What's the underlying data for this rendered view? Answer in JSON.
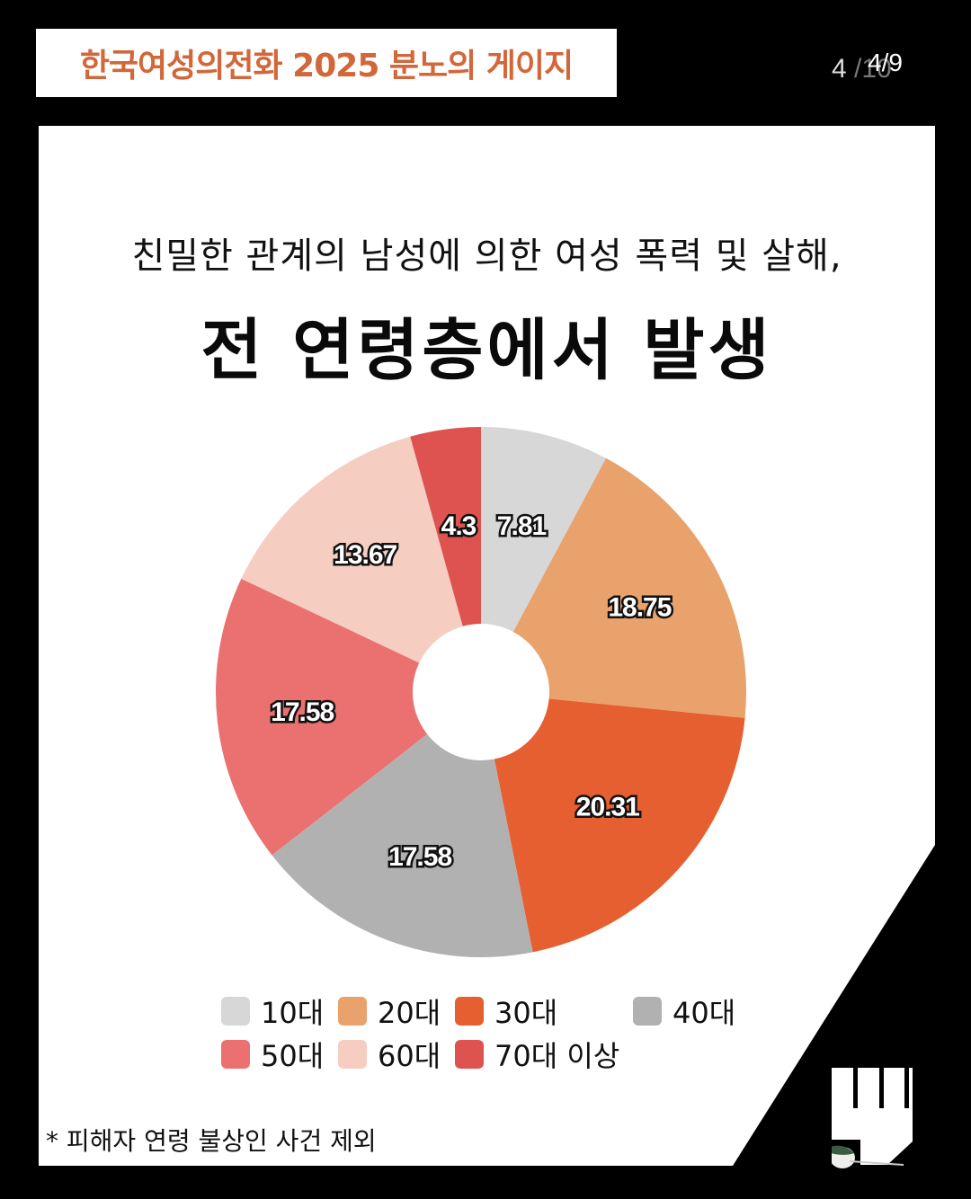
{
  "header": {
    "label": "한국여성의전화 2025 분노의 게이지",
    "label_color": "#d2673a",
    "page_indicator_current": "4/9",
    "page_indicator_ghost_left": "4",
    "page_indicator_ghost_right": "/10"
  },
  "card": {
    "subtitle": "친밀한 관계의 남성에 의한 여성 폭력 및 살해,",
    "title": "전 연령층에서 발생",
    "footnote": "* 피해자 연령 불상인 사건 제외"
  },
  "legend": [
    {
      "label": "10대",
      "color": "#d7d7d7"
    },
    {
      "label": "20대",
      "color": "#e9a26c"
    },
    {
      "label": "30대",
      "color": "#e55f30"
    },
    {
      "label": "40대",
      "color": "#b2b1b1"
    },
    {
      "label": "50대",
      "color": "#ea7170"
    },
    {
      "label": "60대",
      "color": "#f6cdc1"
    },
    {
      "label": "70대 이상",
      "color": "#de5250"
    }
  ],
  "chart_data": {
    "type": "pie",
    "variant": "donut",
    "title": "전 연령층에서 발생",
    "subtitle": "친밀한 관계의 남성에 의한 여성 폭력 및 살해,",
    "categories": [
      "10대",
      "20대",
      "30대",
      "40대",
      "50대",
      "60대",
      "70대 이상"
    ],
    "values": [
      7.81,
      18.75,
      20.31,
      17.58,
      17.58,
      13.67,
      4.3
    ],
    "data_labels": [
      "7.81",
      "18.75",
      "20.31",
      "17.58",
      "17.58",
      "13.67",
      "4.3"
    ],
    "colors": [
      "#d7d7d7",
      "#e9a26c",
      "#e55f30",
      "#b2b1b1",
      "#ea7170",
      "#f6cdc1",
      "#de5250"
    ],
    "start_angle": "12 o'clock",
    "direction": "clockwise",
    "legend_position": "bottom",
    "note": "* 피해자 연령 불상인 사건 제외"
  }
}
